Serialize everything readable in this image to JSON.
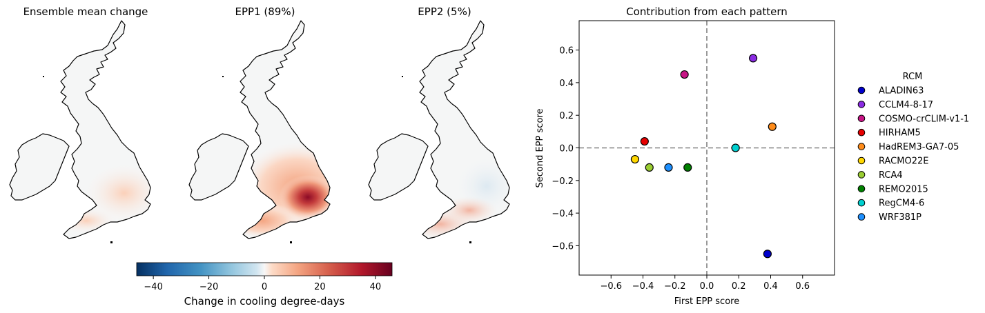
{
  "maps": [
    {
      "title": "Ensemble mean change",
      "pattern": "mean"
    },
    {
      "title": "EPP1 (89%)",
      "pattern": "epp1"
    },
    {
      "title": "EPP2 (5%)",
      "pattern": "epp2"
    }
  ],
  "colorbar": {
    "label": "Change in cooling degree-days",
    "ticks": [
      -40,
      -20,
      0,
      20,
      40
    ],
    "tick_labels": [
      "−40",
      "−20",
      "0",
      "20",
      "40"
    ],
    "range": [
      -46,
      46
    ],
    "colormap": "RdBu_r"
  },
  "chart_data": {
    "type": "scatter",
    "title": "Contribution from each pattern",
    "xlabel": "First EPP score",
    "ylabel": "Second EPP score",
    "xlim": [
      -0.8,
      0.8
    ],
    "ylim": [
      -0.78,
      0.78
    ],
    "xticks": [
      -0.6,
      -0.4,
      -0.2,
      0.0,
      0.2,
      0.4,
      0.6
    ],
    "xtick_labels": [
      "−0.6",
      "−0.4",
      "−0.2",
      "0.0",
      "0.2",
      "0.4",
      "0.6"
    ],
    "yticks": [
      -0.6,
      -0.4,
      -0.2,
      0.0,
      0.2,
      0.4,
      0.6
    ],
    "ytick_labels": [
      "−0.6",
      "−0.4",
      "−0.2",
      "0.0",
      "0.2",
      "0.4",
      "0.6"
    ],
    "reference_lines": {
      "x": 0,
      "y": 0,
      "style": "dashed",
      "color": "#808080"
    },
    "grid": false,
    "legend": {
      "title": "RCM",
      "placement": "right"
    },
    "series": [
      {
        "name": "ALADIN63",
        "color": "#0000cd",
        "x": 0.38,
        "y": -0.65
      },
      {
        "name": "CCLM4-8-17",
        "color": "#8a2be2",
        "x": 0.29,
        "y": 0.55
      },
      {
        "name": "COSMO-crCLIM-v1-1",
        "color": "#c71585",
        "x": -0.14,
        "y": 0.45
      },
      {
        "name": "HIRHAM5",
        "color": "#e60000",
        "x": -0.39,
        "y": 0.04
      },
      {
        "name": "HadREM3-GA7-05",
        "color": "#ff8c1a",
        "x": 0.41,
        "y": 0.13
      },
      {
        "name": "RACMO22E",
        "color": "#ffd700",
        "x": -0.45,
        "y": -0.07
      },
      {
        "name": "RCA4",
        "color": "#9acd32",
        "x": -0.36,
        "y": -0.12
      },
      {
        "name": "REMO2015",
        "color": "#008000",
        "x": -0.12,
        "y": -0.12
      },
      {
        "name": "RegCM4-6",
        "color": "#00d0d0",
        "x": 0.18,
        "y": 0.0
      },
      {
        "name": "WRF381P",
        "color": "#1e90ff",
        "x": -0.24,
        "y": -0.12
      }
    ]
  }
}
